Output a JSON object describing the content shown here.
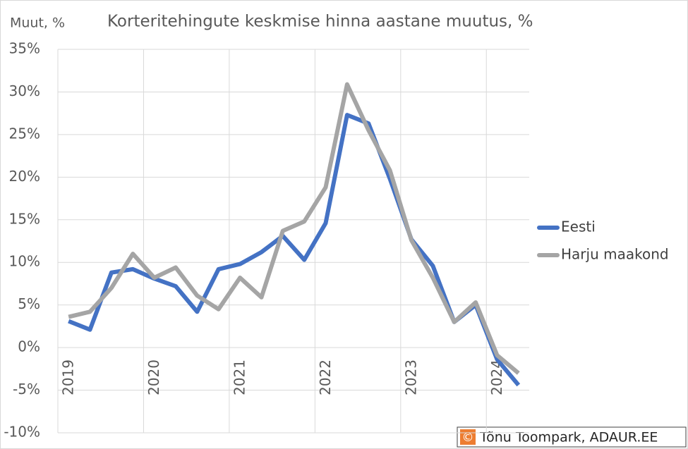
{
  "chart_data": {
    "type": "line",
    "title": "Korteritehingute keskmise hinna aastane muutus, %",
    "y_label": "Muut, %",
    "categories": [
      "2019",
      null,
      null,
      null,
      "2020",
      null,
      null,
      null,
      "2021",
      null,
      null,
      null,
      "2022",
      null,
      null,
      null,
      "2023",
      null,
      null,
      null,
      "2024",
      null
    ],
    "series": [
      {
        "name": "Eesti",
        "color": "#4472c4",
        "values": [
          3.1,
          2.1,
          8.8,
          9.2,
          8.1,
          7.2,
          4.2,
          9.2,
          9.8,
          11.2,
          13.1,
          10.3,
          14.6,
          27.3,
          26.3,
          19.8,
          12.7,
          9.6,
          3.0,
          5.0,
          -1.4,
          -4.4
        ]
      },
      {
        "name": "Harju maakond",
        "color": "#a5a5a5",
        "values": [
          3.6,
          4.2,
          7.0,
          11.0,
          8.2,
          9.4,
          6.1,
          4.5,
          8.2,
          5.9,
          13.7,
          14.8,
          18.8,
          30.9,
          25.5,
          20.8,
          12.6,
          8.2,
          3.0,
          5.3,
          -0.9,
          -3.0
        ]
      }
    ],
    "ylim": [
      -10,
      35
    ],
    "yticks": [
      {
        "value": -10,
        "label": "-10%"
      },
      {
        "value": -5,
        "label": "-5%"
      },
      {
        "value": 0,
        "label": "0%"
      },
      {
        "value": 5,
        "label": "5%"
      },
      {
        "value": 10,
        "label": "10%"
      },
      {
        "value": 15,
        "label": "15%"
      },
      {
        "value": 20,
        "label": "20%"
      },
      {
        "value": 25,
        "label": "25%"
      },
      {
        "value": 30,
        "label": "30%"
      },
      {
        "value": 35,
        "label": "35%"
      }
    ],
    "grid": true,
    "legend": "right",
    "credit_symbol": "©",
    "credit": "Tõnu Toompark, ADAUR.EE"
  }
}
